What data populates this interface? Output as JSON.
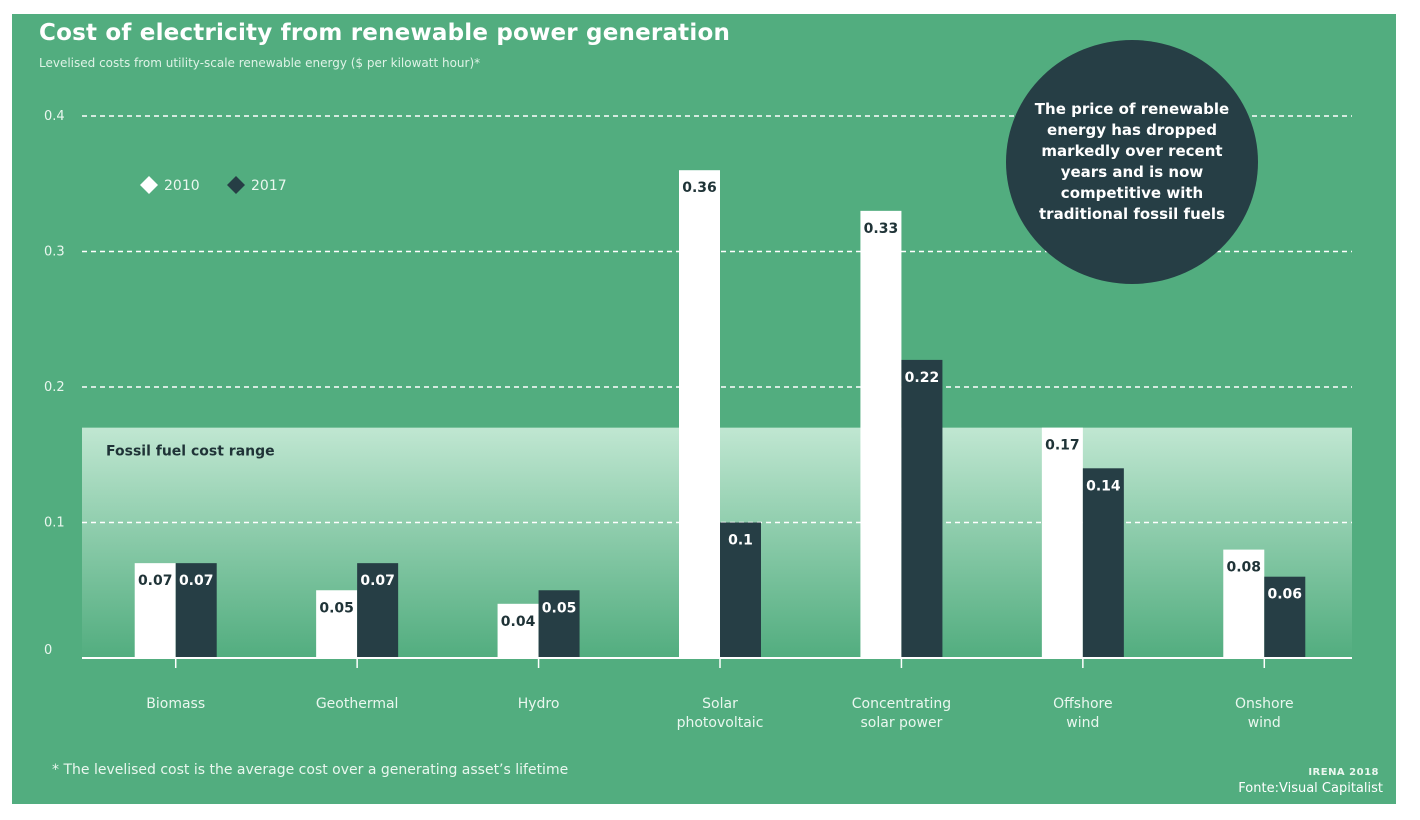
{
  "header": {
    "title": "Cost of electricity from renewable power generation",
    "subtitle": "Levelised costs from utility-scale renewable energy ($ per kilowatt hour)*"
  },
  "callout": {
    "text": "The price of renewable energy has dropped markedly over recent years and is now competitive with traditional fossil fuels"
  },
  "footer": {
    "footnote": "* The levelised cost is the average cost over a generating asset’s lifetime",
    "source_org": "IRENA 2018",
    "source_credit": "Fonte:Visual Capitalist"
  },
  "colors": {
    "background": "#52ad7f",
    "series_2010": "#ffffff",
    "series_2017": "#263e45",
    "band": "#c6ead6",
    "callout": "#263e45"
  },
  "chart_data": {
    "type": "bar",
    "title": "Cost of electricity from renewable power generation",
    "subtitle": "Levelised costs from utility-scale renewable energy ($ per kilowatt hour)*",
    "categories": [
      [
        "Biomass"
      ],
      [
        "Geothermal"
      ],
      [
        "Hydro"
      ],
      [
        "Solar",
        "photovoltaic"
      ],
      [
        "Concentrating",
        "solar  power"
      ],
      [
        "Offshore",
        "wind"
      ],
      [
        "Onshore",
        "wind"
      ]
    ],
    "series": [
      {
        "name": "2010",
        "values": [
          0.07,
          0.05,
          0.04,
          0.36,
          0.33,
          0.17,
          0.08
        ],
        "labels": [
          "0.07",
          "0.05",
          "0.04",
          "0.36",
          "0.33",
          "0.17",
          "0.08"
        ]
      },
      {
        "name": "2017",
        "values": [
          0.07,
          0.07,
          0.05,
          0.1,
          0.22,
          0.14,
          0.06
        ],
        "labels": [
          "0.07",
          "0.07",
          "0.05",
          "0.1",
          "0.22",
          "0.14",
          "0.06"
        ]
      }
    ],
    "ylim": [
      0,
      0.4
    ],
    "yticks": [
      0,
      0.1,
      0.2,
      0.3,
      0.4
    ],
    "ytick_labels": [
      "0",
      "0.1",
      "0.2",
      "0.3",
      "0.4"
    ],
    "grid": "dashed horizontal",
    "legend_position": "top-left",
    "band": {
      "label": "Fossil fuel cost range",
      "ymax": 0.17
    }
  }
}
